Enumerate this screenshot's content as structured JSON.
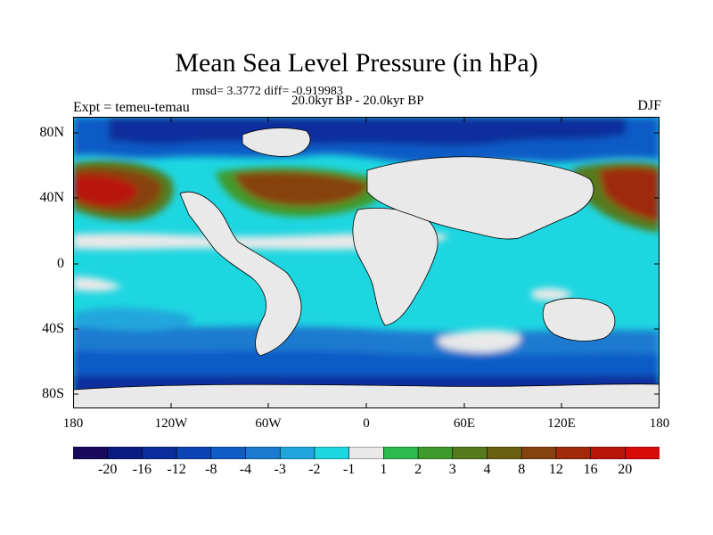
{
  "title": "Mean Sea Level Pressure (in hPa)",
  "stats": "rmsd= 3.3772 diff= -0.919983",
  "experiment": "Expt = temeu-temau",
  "period": "20.0kyr BP - 20.0kyr BP",
  "season": "DJF",
  "lat_labels": [
    "80N",
    "40N",
    "0",
    "40S",
    "80S"
  ],
  "lon_labels": [
    "180",
    "120W",
    "60W",
    "0",
    "60E",
    "120E",
    "180"
  ],
  "colorbar": {
    "labels": [
      "-20",
      "-16",
      "-12",
      "-8",
      "-4",
      "-3",
      "-2",
      "-1",
      "1",
      "2",
      "3",
      "4",
      "8",
      "12",
      "16",
      "20"
    ],
    "colors": [
      "#1a0a5e",
      "#0a1a80",
      "#0a2d9c",
      "#0c44b4",
      "#0f5cc6",
      "#1a7ad0",
      "#20a6dc",
      "#1ed6e0",
      "#e9e9e9",
      "#2cba4e",
      "#3f9a2c",
      "#557a1c",
      "#6a5f10",
      "#86420c",
      "#9e2a0a",
      "#b8160a",
      "#d80a0a"
    ]
  },
  "colors": {
    "background": "#ffffff",
    "land": "#e9e9e9",
    "ocean_main": "#1ed6e0",
    "coastline": "#000000"
  }
}
